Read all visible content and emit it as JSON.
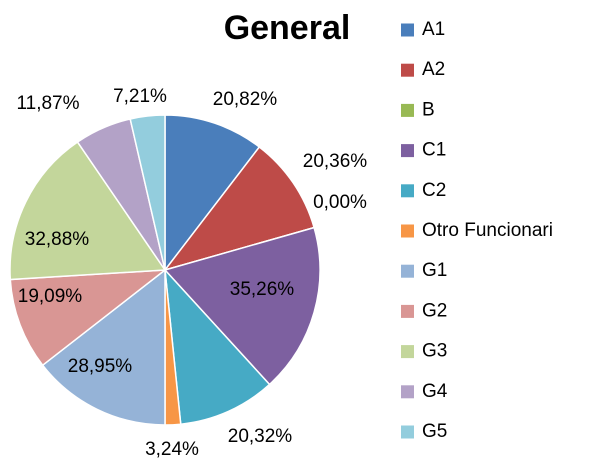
{
  "chart_data": {
    "type": "pie",
    "title": "General",
    "categories": [
      "A1",
      "A2",
      "B",
      "C1",
      "C2",
      "Otro Funcionari",
      "G1",
      "G2",
      "G3",
      "G4",
      "G5"
    ],
    "values": [
      20.82,
      20.36,
      0.0,
      35.26,
      20.32,
      3.24,
      28.95,
      19.09,
      32.88,
      11.87,
      7.21
    ],
    "value_labels": [
      "20,82%",
      "20,36%",
      "0,00%",
      "35,26%",
      "20,32%",
      "3,24%",
      "28,95%",
      "19,09%",
      "32,88%",
      "11,87%",
      "7,21%"
    ],
    "colors": [
      "#4a7ebb",
      "#be4b48",
      "#98b954",
      "#7d60a0",
      "#46aac5",
      "#f79646",
      "#95b3d7",
      "#d99694",
      "#c3d69b",
      "#b3a2c7",
      "#93cddd"
    ],
    "legend": "right"
  }
}
